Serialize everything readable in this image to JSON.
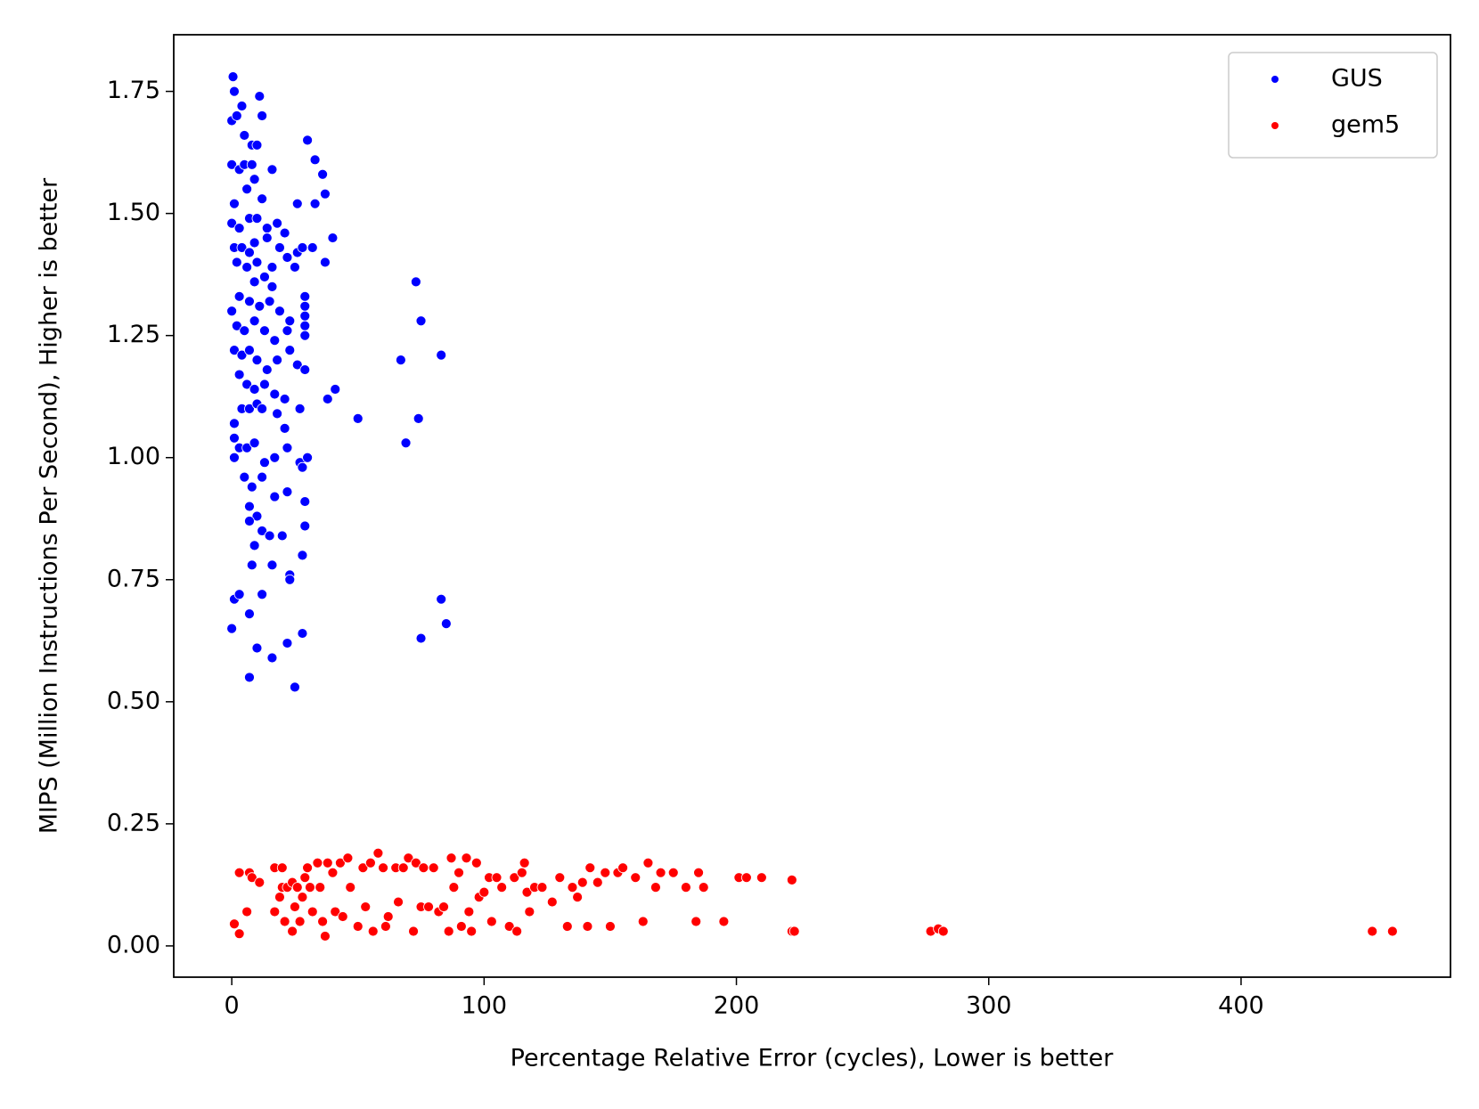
{
  "chart_data": {
    "type": "scatter",
    "xlabel": "Percentage Relative Error (cycles), Lower is better",
    "ylabel": "MIPS (Million Instructions Per Second), Higher is better",
    "xlim": [
      -23,
      483
    ],
    "ylim": [
      -0.064,
      1.866
    ],
    "xticks": [
      0,
      100,
      200,
      300,
      400
    ],
    "yticks": [
      {
        "value": 0,
        "label": "0.00"
      },
      {
        "value": 0.25,
        "label": "0.25"
      },
      {
        "value": 0.5,
        "label": "0.50"
      },
      {
        "value": 0.75,
        "label": "0.75"
      },
      {
        "value": 1,
        "label": "1.00"
      },
      {
        "value": 1.25,
        "label": "1.25"
      },
      {
        "value": 1.5,
        "label": "1.50"
      },
      {
        "value": 1.75,
        "label": "1.75"
      }
    ],
    "legend": "upper right",
    "series": [
      {
        "name": "GUS",
        "color": "#0000ff",
        "x": [
          0.5,
          1,
          4,
          11,
          12,
          0,
          2,
          5,
          8,
          10,
          0,
          3,
          5,
          8,
          16,
          9,
          12,
          6,
          1,
          0,
          3,
          7,
          10,
          14,
          18,
          21,
          26,
          33,
          30,
          33,
          36,
          37,
          40,
          1,
          4,
          7,
          9,
          14,
          19,
          22,
          26,
          28,
          32,
          2,
          6,
          10,
          16,
          25,
          37,
          9,
          13,
          16,
          29,
          29,
          0,
          3,
          7,
          11,
          15,
          19,
          23,
          29,
          29,
          2,
          5,
          9,
          13,
          17,
          22,
          29,
          73,
          75,
          67,
          83,
          1,
          4,
          7,
          10,
          14,
          18,
          23,
          26,
          29,
          3,
          6,
          9,
          13,
          17,
          21,
          38,
          41,
          1,
          4,
          7,
          10,
          12,
          18,
          21,
          27,
          50,
          74,
          69,
          1,
          3,
          6,
          9,
          13,
          17,
          22,
          27,
          28,
          30,
          1,
          5,
          8,
          12,
          17,
          22,
          29,
          7,
          10,
          7,
          12,
          15,
          20,
          29,
          9,
          16,
          8,
          28,
          23,
          23,
          1,
          3,
          12,
          83,
          85,
          75,
          0,
          7,
          10,
          16,
          22,
          28,
          7,
          25
        ],
        "values": [
          1.78,
          1.75,
          1.72,
          1.74,
          1.7,
          1.69,
          1.7,
          1.66,
          1.64,
          1.64,
          1.6,
          1.59,
          1.6,
          1.6,
          1.59,
          1.57,
          1.53,
          1.55,
          1.52,
          1.48,
          1.47,
          1.49,
          1.49,
          1.47,
          1.48,
          1.46,
          1.52,
          1.52,
          1.65,
          1.61,
          1.58,
          1.54,
          1.45,
          1.43,
          1.43,
          1.42,
          1.44,
          1.45,
          1.43,
          1.41,
          1.42,
          1.43,
          1.43,
          1.4,
          1.39,
          1.4,
          1.39,
          1.39,
          1.4,
          1.36,
          1.37,
          1.35,
          1.33,
          1.31,
          1.3,
          1.33,
          1.32,
          1.31,
          1.32,
          1.3,
          1.28,
          1.29,
          1.27,
          1.27,
          1.26,
          1.28,
          1.26,
          1.24,
          1.26,
          1.25,
          1.36,
          1.28,
          1.2,
          1.21,
          1.22,
          1.21,
          1.22,
          1.2,
          1.18,
          1.2,
          1.22,
          1.19,
          1.18,
          1.17,
          1.15,
          1.14,
          1.15,
          1.13,
          1.12,
          1.12,
          1.14,
          1.07,
          1.1,
          1.1,
          1.11,
          1.1,
          1.09,
          1.06,
          1.1,
          1.08,
          1.08,
          1.03,
          1.04,
          1.02,
          1.02,
          1.03,
          0.99,
          1.0,
          1.02,
          0.99,
          0.98,
          1.0,
          1.0,
          0.96,
          0.94,
          0.96,
          0.92,
          0.93,
          0.91,
          0.9,
          0.88,
          0.87,
          0.85,
          0.84,
          0.84,
          0.86,
          0.82,
          0.78,
          0.78,
          0.8,
          0.76,
          0.75,
          0.71,
          0.72,
          0.72,
          0.71,
          0.66,
          0.63,
          0.65,
          0.68,
          0.61,
          0.59,
          0.62,
          0.64,
          0.55,
          0.53
        ]
      },
      {
        "name": "gem5",
        "color": "#ff0000",
        "x": [
          1,
          3,
          3,
          7,
          8,
          6,
          11,
          17,
          20,
          17,
          19,
          20,
          21,
          22,
          24,
          24,
          25,
          26,
          27,
          28,
          29,
          30,
          31,
          32,
          34,
          35,
          36,
          37,
          38,
          40,
          41,
          43,
          44,
          46,
          47,
          50,
          52,
          53,
          55,
          56,
          58,
          60,
          61,
          62,
          65,
          66,
          68,
          70,
          72,
          73,
          75,
          76,
          78,
          80,
          82,
          84,
          86,
          87,
          88,
          90,
          91,
          93,
          94,
          95,
          97,
          98,
          100,
          102,
          103,
          105,
          107,
          110,
          112,
          113,
          115,
          116,
          117,
          118,
          120,
          123,
          127,
          130,
          133,
          135,
          137,
          139,
          141,
          142,
          145,
          148,
          150,
          153,
          155,
          160,
          163,
          165,
          168,
          170,
          175,
          180,
          184,
          185,
          187,
          195,
          201,
          204,
          210,
          222,
          222,
          223,
          277,
          280,
          282,
          452,
          460
        ],
        "values": [
          0.045,
          0.025,
          0.15,
          0.15,
          0.14,
          0.07,
          0.13,
          0.16,
          0.16,
          0.07,
          0.1,
          0.12,
          0.05,
          0.12,
          0.13,
          0.03,
          0.08,
          0.12,
          0.05,
          0.1,
          0.14,
          0.16,
          0.12,
          0.07,
          0.17,
          0.12,
          0.05,
          0.02,
          0.17,
          0.15,
          0.07,
          0.17,
          0.06,
          0.18,
          0.12,
          0.04,
          0.16,
          0.08,
          0.17,
          0.03,
          0.19,
          0.16,
          0.04,
          0.06,
          0.16,
          0.09,
          0.16,
          0.18,
          0.03,
          0.17,
          0.08,
          0.16,
          0.08,
          0.16,
          0.07,
          0.08,
          0.03,
          0.18,
          0.12,
          0.15,
          0.04,
          0.18,
          0.07,
          0.03,
          0.17,
          0.1,
          0.11,
          0.14,
          0.05,
          0.14,
          0.12,
          0.04,
          0.14,
          0.03,
          0.15,
          0.17,
          0.11,
          0.07,
          0.12,
          0.12,
          0.09,
          0.14,
          0.04,
          0.12,
          0.1,
          0.13,
          0.04,
          0.16,
          0.13,
          0.15,
          0.04,
          0.15,
          0.16,
          0.14,
          0.05,
          0.17,
          0.12,
          0.15,
          0.15,
          0.12,
          0.05,
          0.15,
          0.12,
          0.05,
          0.14,
          0.14,
          0.14,
          0.135,
          0.03,
          0.03,
          0.03,
          0.035,
          0.03,
          0.03,
          0.03
        ]
      }
    ]
  }
}
